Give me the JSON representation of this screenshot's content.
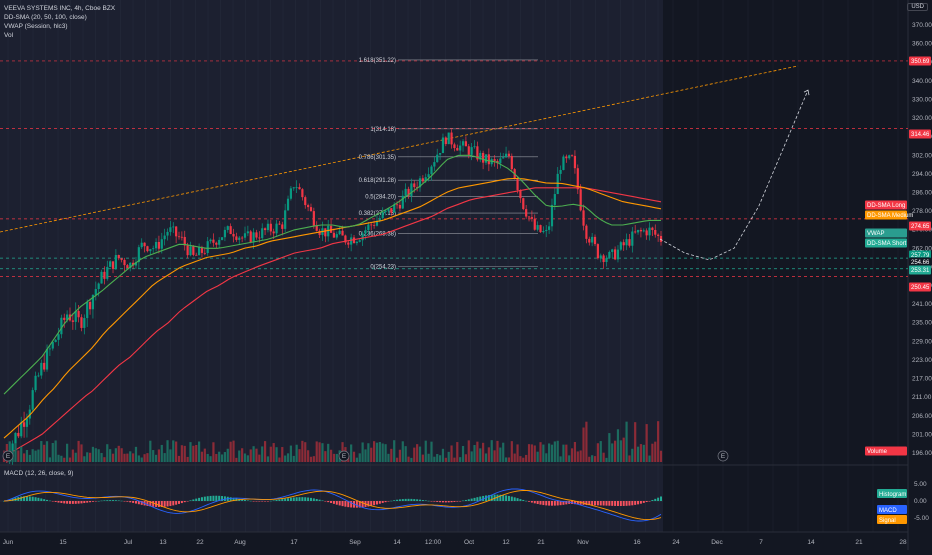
{
  "chart_data": {
    "type": "candlestick",
    "title": "VEEVA SYSTEMS INC, 4h, Cboe BZX",
    "indicators": [
      "DD-SMA (20, 50, 100, close)",
      "VWAP (Session, hlc3)",
      "Vol"
    ],
    "currency": "USD",
    "x_ticks": [
      "Jun",
      "15",
      "Jul",
      "13",
      "22",
      "Aug",
      "17",
      "Sep",
      "14",
      "12:00",
      "Oct",
      "12",
      "21",
      "Nov",
      "16",
      "24",
      "Dec",
      "7",
      "14",
      "21",
      "28"
    ],
    "y_ticks": [
      "370.00",
      "360.00",
      "350.00",
      "340.00",
      "330.00",
      "320.00",
      "310.00",
      "302.00",
      "294.00",
      "286.00",
      "278.00",
      "270.00",
      "262.00",
      "254.00",
      "247.00",
      "241.00",
      "235.00",
      "229.00",
      "223.00",
      "217.00",
      "211.00",
      "206.00",
      "201.00",
      "196.00"
    ],
    "price_tags": [
      {
        "text": "350.69",
        "color": "#f23645"
      },
      {
        "text": "314.46",
        "color": "#f23645"
      },
      {
        "text": "DD-SMA Long",
        "color": "#f23645"
      },
      {
        "text": "DD-SMA Medium",
        "color": "#ff9800"
      },
      {
        "text": "274.65",
        "color": "#f23645"
      },
      {
        "text": "VWAP",
        "color": "#2a9d8f"
      },
      {
        "text": "DD-SMA Short",
        "color": "#22ab94"
      },
      {
        "text": "257.79",
        "color": "#089981"
      },
      {
        "text": "254.66",
        "color": "#131722"
      },
      {
        "text": "253.31",
        "color": "#22ab94"
      },
      {
        "text": "250.45",
        "color": "#f23645"
      },
      {
        "text": "Volume",
        "color": "#f23645"
      }
    ],
    "fib_levels": [
      {
        "label": "1.618(351.22)",
        "value": 351.22
      },
      {
        "label": "1(314.18)",
        "value": 314.18
      },
      {
        "label": "0.786(301.35)",
        "value": 301.35
      },
      {
        "label": "0.618(291.28)",
        "value": 291.28
      },
      {
        "label": "0.5(284.20)",
        "value": 284.2
      },
      {
        "label": "0.382(277.13)",
        "value": 277.13
      },
      {
        "label": "0.236(268.38)",
        "value": 268.38
      },
      {
        "label": "0(254.23)",
        "value": 254.23
      }
    ],
    "close_path": [
      195,
      201,
      209,
      221,
      229,
      238,
      235,
      244,
      252,
      258,
      255,
      264,
      262,
      270,
      266,
      258,
      262,
      267,
      270,
      266,
      268,
      270,
      272,
      291,
      280,
      270,
      268,
      266,
      267,
      272,
      276,
      280,
      286,
      292,
      300,
      310,
      306,
      304,
      300,
      298,
      302,
      282,
      270,
      268,
      298,
      300,
      270,
      260,
      258,
      263,
      268,
      270,
      266
    ],
    "sma_short": [
      212,
      216,
      220,
      224,
      230,
      236,
      240,
      243,
      246,
      250,
      254,
      258,
      260,
      262,
      264,
      263,
      262,
      262,
      263,
      264,
      265,
      266,
      268,
      270,
      271,
      272,
      272,
      271,
      272,
      275,
      278,
      281,
      285,
      289,
      294,
      300,
      302,
      302,
      300,
      299,
      296,
      291,
      285,
      280,
      280,
      281,
      280,
      275,
      272,
      272,
      273,
      274,
      274
    ],
    "sma_medium": [
      200,
      203,
      206,
      210,
      214,
      219,
      223,
      227,
      232,
      236,
      240,
      244,
      248,
      251,
      254,
      256,
      258,
      259,
      260,
      262,
      263,
      265,
      266,
      267,
      268,
      269,
      270,
      271,
      272,
      273,
      274,
      276,
      278,
      280,
      283,
      286,
      288,
      289,
      290,
      291,
      292,
      292,
      291,
      290,
      290,
      289,
      288,
      286,
      284,
      282,
      281,
      280,
      279
    ],
    "sma_long": [
      195,
      197,
      199,
      201,
      204,
      207,
      210,
      213,
      217,
      221,
      224,
      228,
      232,
      235,
      239,
      242,
      245,
      247,
      250,
      252,
      254,
      256,
      258,
      260,
      261,
      262,
      264,
      265,
      266,
      267,
      268,
      270,
      272,
      274,
      276,
      279,
      281,
      283,
      284,
      285,
      286,
      287,
      288,
      288,
      288,
      288,
      288,
      287,
      286,
      285,
      284,
      283,
      282
    ],
    "projection": {
      "path": [
        266,
        260,
        257,
        262,
        280,
        305,
        335
      ],
      "style": "dashed"
    },
    "trendline_value_start": 269,
    "trendline_value_end": 348,
    "horizontal_levels": [
      350.69,
      314.46,
      274.65,
      257.79,
      253.31,
      250.45
    ],
    "macd_label": "MACD (12, 26, close, 9)",
    "macd_ticks": [
      "5.00",
      "0.00",
      "-5.00"
    ],
    "macd_tags": [
      {
        "text": "Histogram",
        "color": "#22ab94"
      },
      {
        "text": "MACD",
        "color": "#2962ff"
      },
      {
        "text": "Signal",
        "color": "#ff9800"
      }
    ],
    "earnings_markers": [
      "E",
      "E",
      "E"
    ],
    "colors": {
      "up": "#089981",
      "down": "#f23645",
      "sma_short": "#4caf50",
      "sma_medium": "#ff9800",
      "sma_long": "#f23645",
      "background": "#131722"
    }
  }
}
